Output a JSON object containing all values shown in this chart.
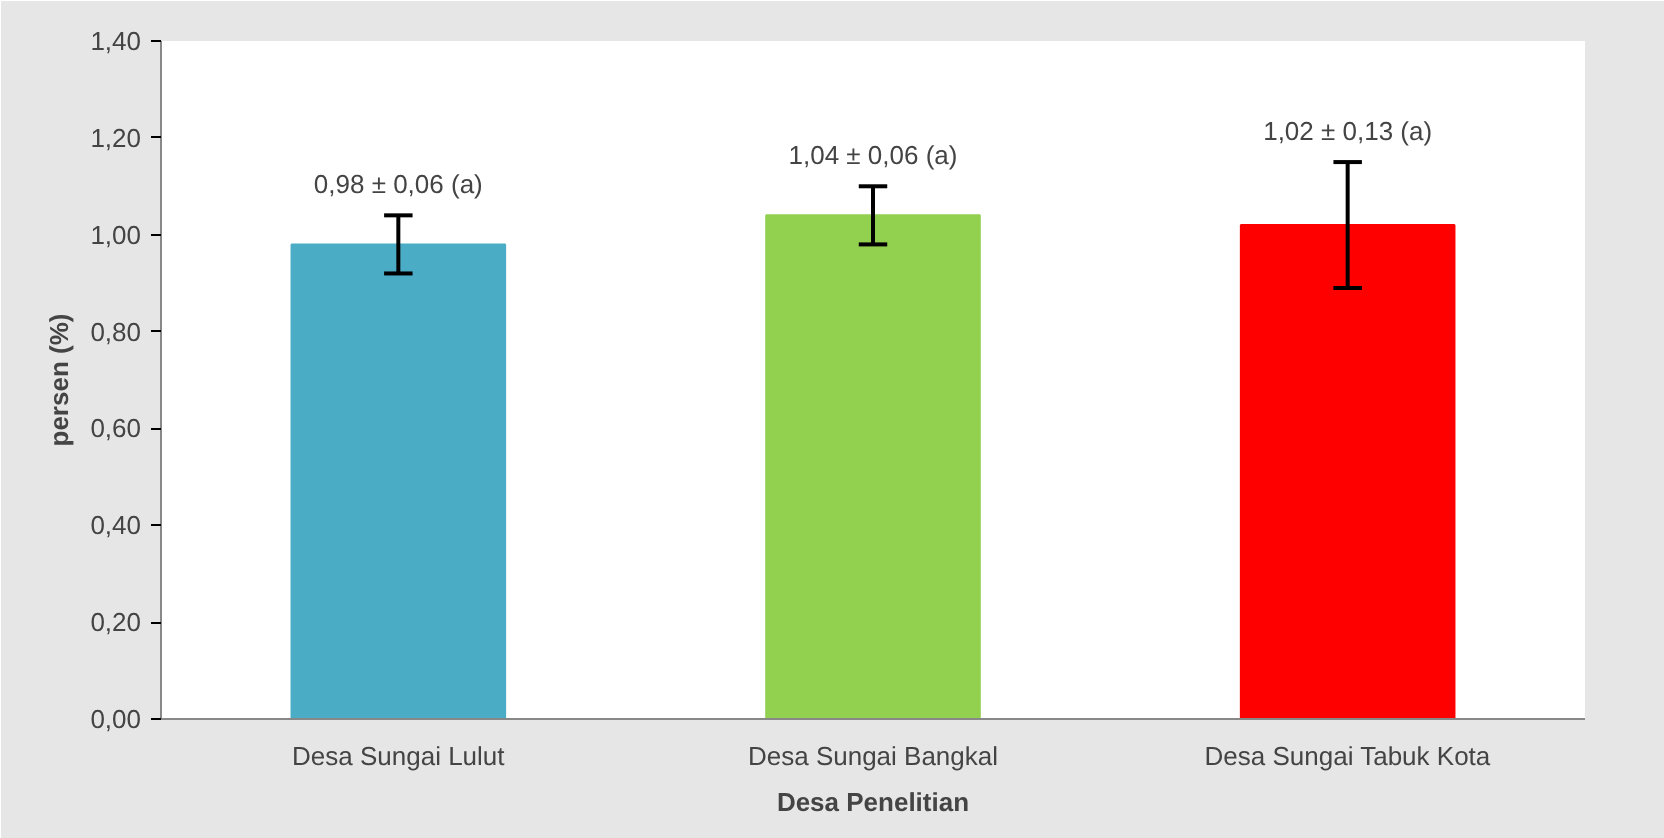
{
  "chart_data": {
    "type": "bar",
    "xlabel": "Desa Penelitian",
    "ylabel": "persen (%)",
    "categories": [
      "Desa Sungai Lulut",
      "Desa Sungai Bangkal",
      "Desa Sungai Tabuk Kota"
    ],
    "values": [
      0.98,
      1.04,
      1.02
    ],
    "errors": [
      0.06,
      0.06,
      0.13
    ],
    "colors": [
      "#4bacc6",
      "#92d050",
      "#ff0000"
    ],
    "value_labels": [
      "0,98 ± 0,06 (a)",
      "1,04 ± 0,06 (a)",
      "1,02 ± 0,13 (a)"
    ],
    "ylim": [
      0,
      1.4
    ],
    "yticks": [
      {
        "value": 0,
        "label": "0,00"
      },
      {
        "value": 0.2,
        "label": "0,20"
      },
      {
        "value": 0.4,
        "label": "0,40"
      },
      {
        "value": 0.6,
        "label": "0,60"
      },
      {
        "value": 0.8,
        "label": "0,80"
      },
      {
        "value": 1.0,
        "label": "1,00"
      },
      {
        "value": 1.2,
        "label": "1,20"
      },
      {
        "value": 1.4,
        "label": "1,40"
      }
    ],
    "grid": false
  }
}
